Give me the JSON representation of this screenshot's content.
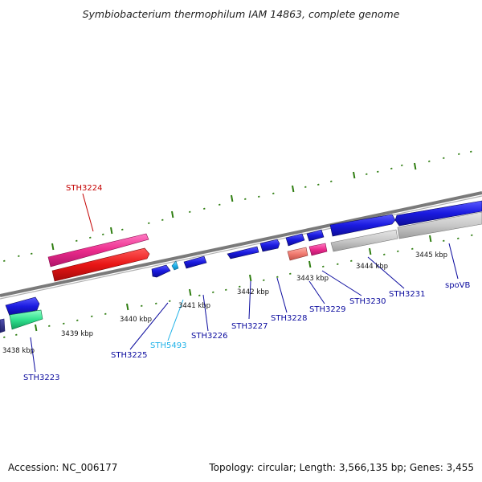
{
  "title": "Symbiobacterium thermophilum IAM 14863, complete genome",
  "footer": {
    "accession": "Accession: NC_006177",
    "summary": "Topology: circular; Length: 3,566,135 bp; Genes: 3,455"
  },
  "colors": {
    "backbone": "#808080",
    "tick": "#2e7d10",
    "gene_blue": "#1a1adf",
    "rna_pink": "#ec2b8c",
    "rna_red": "#e81515",
    "pseudo_gray": "#c8c8c8",
    "label_blue": "#0b0b9e",
    "label_red": "#c40000",
    "label_cyan": "#20b2e8"
  },
  "scale_labels": [
    "3438 kbp",
    "3439 kbp",
    "3440 kbp",
    "3441 kbp",
    "3442 kbp",
    "3443 kbp",
    "3444 kbp",
    "3445 kbp"
  ],
  "gene_labels": [
    {
      "text": "STH3224",
      "color": "red"
    },
    {
      "text": "STH3223",
      "color": "blue"
    },
    {
      "text": "STH3225",
      "color": "blue"
    },
    {
      "text": "STH5493",
      "color": "cyan"
    },
    {
      "text": "STH3226",
      "color": "blue"
    },
    {
      "text": "STH3227",
      "color": "blue"
    },
    {
      "text": "STH3228",
      "color": "blue"
    },
    {
      "text": "STH3229",
      "color": "blue"
    },
    {
      "text": "STH3230",
      "color": "blue"
    },
    {
      "text": "STH3231",
      "color": "blue"
    },
    {
      "text": "spoVB",
      "color": "blue"
    }
  ]
}
